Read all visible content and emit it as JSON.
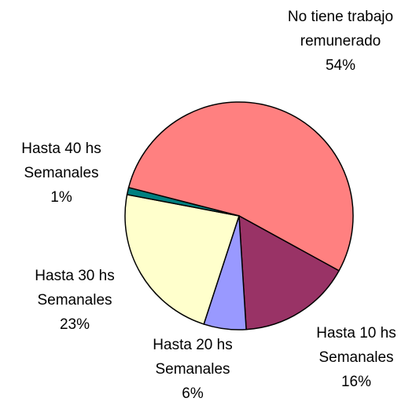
{
  "chart_data": {
    "type": "pie",
    "categories": [
      "No tiene trabajo remunerado",
      "Hasta 10 hs Semanales",
      "Hasta 20 hs Semanales",
      "Hasta 30 hs Semanales",
      "Hasta 40 hs Semanales"
    ],
    "values": [
      54,
      16,
      6,
      23,
      1
    ],
    "value_labels": [
      "54%",
      "16%",
      "6%",
      "23%",
      "1%"
    ],
    "colors": [
      "#FF8080",
      "#993366",
      "#9999FF",
      "#FFFFCC",
      "#008080"
    ]
  }
}
